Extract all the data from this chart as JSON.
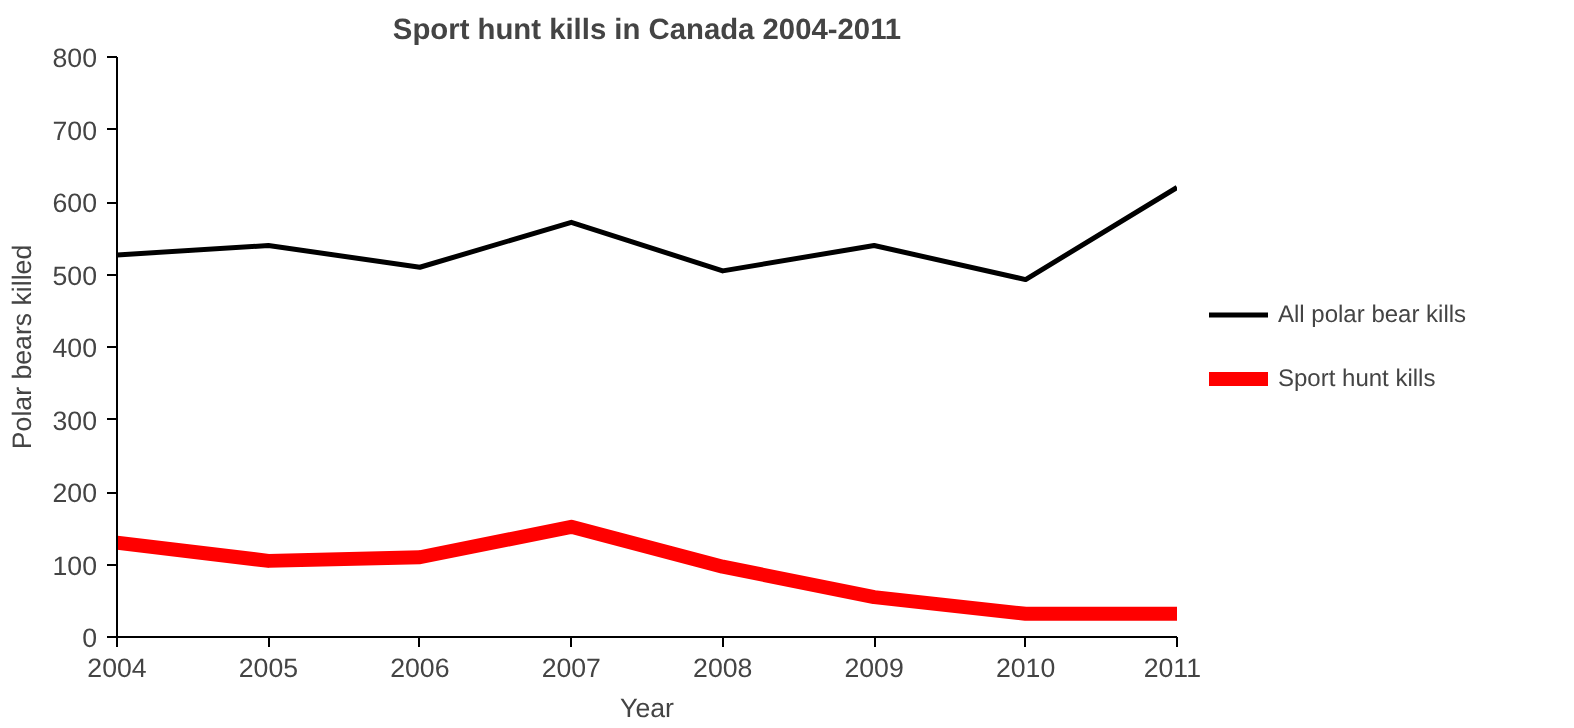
{
  "chart_data": {
    "type": "line",
    "title": "Sport hunt kills in Canada 2004-2011",
    "xlabel": "Year",
    "ylabel": "Polar bears killed",
    "x": [
      2004,
      2005,
      2006,
      2007,
      2008,
      2009,
      2010,
      2011
    ],
    "series": [
      {
        "name": "All polar bear kills",
        "color": "#000000",
        "values": [
          527,
          540,
          510,
          572,
          505,
          540,
          493,
          620
        ]
      },
      {
        "name": "Sport hunt kills",
        "color": "#ff0000",
        "values": [
          130,
          105,
          110,
          152,
          97,
          55,
          32,
          32
        ]
      }
    ],
    "xlim": [
      2004,
      2011
    ],
    "xticks": [
      2004,
      2005,
      2006,
      2007,
      2008,
      2009,
      2010,
      2011
    ],
    "ylim": [
      0,
      800
    ],
    "yticks": [
      0,
      100,
      200,
      300,
      400,
      500,
      600,
      700,
      800
    ],
    "grid": false,
    "legend": "right",
    "marker": "none",
    "line_style": "solid"
  }
}
